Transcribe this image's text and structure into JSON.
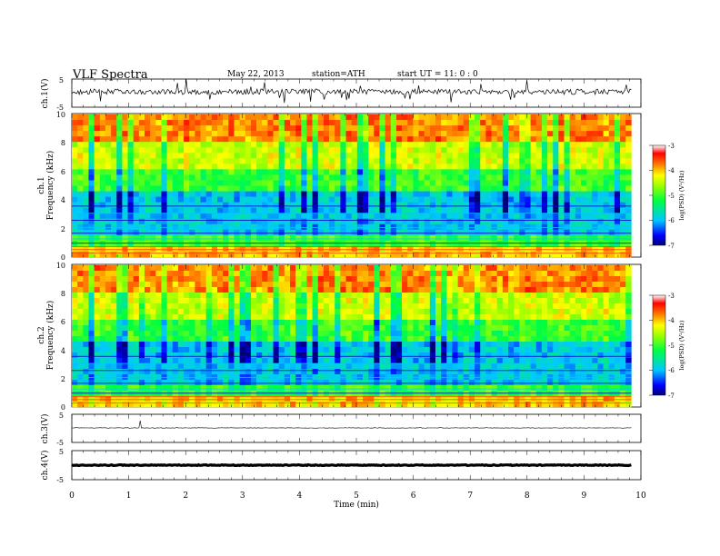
{
  "header": {
    "title": "VLF  Spectra",
    "date": "May 22, 2013",
    "station": "station=ATH",
    "start": "start  UT  =    11: 0  : 0"
  },
  "x_axis": {
    "label": "Time  (min)",
    "range": [
      0,
      10
    ],
    "ticks": [
      "0",
      "1",
      "2",
      "3",
      "4",
      "5",
      "6",
      "7",
      "8",
      "9",
      "10"
    ],
    "data_end": 9.83
  },
  "colorbar": {
    "label": "log(PSD) (V²/Hz)",
    "range": [
      -7,
      -3
    ],
    "ticks": [
      "-3",
      "-4",
      "-5",
      "-6",
      "-7"
    ]
  },
  "panels": {
    "ch1_wave": {
      "label": "ch.1(V)",
      "ticks": [
        "5",
        "-5"
      ],
      "range": [
        -5,
        5
      ]
    },
    "ch1_spec": {
      "label_channel": "ch.1",
      "label_axis": "Frequency  (kHz)",
      "ticks": [
        "10",
        "8",
        "6",
        "4",
        "2",
        "0"
      ],
      "range": [
        0,
        10
      ]
    },
    "ch2_spec": {
      "label_channel": "ch.2",
      "label_axis": "Frequency  (kHz)",
      "ticks": [
        "10",
        "8",
        "6",
        "4",
        "2",
        "0"
      ],
      "range": [
        0,
        10
      ]
    },
    "ch3_wave": {
      "label": "ch.3(V)",
      "ticks": [
        "5",
        "-5"
      ],
      "range": [
        -5,
        5
      ]
    },
    "ch4_wave": {
      "label": "ch.4(V)",
      "ticks": [
        "5",
        "-5"
      ],
      "range": [
        -5,
        5
      ]
    }
  },
  "chart_data": [
    {
      "type": "line",
      "ylabel": "ch.1(V)",
      "xlabel": "Time  (min)",
      "xlim": [
        0,
        10
      ],
      "ylim": [
        -5,
        5
      ],
      "mean_level": 0,
      "note_visible": "noisy waveform with spikes"
    },
    {
      "type": "heatmap",
      "ylabel": "Frequency  (kHz)",
      "channel": "ch.1",
      "xlim": [
        0,
        10
      ],
      "ylim": [
        0,
        10
      ],
      "zlim": [
        -7,
        -3
      ],
      "zlabel": "log(PSD) (V²/Hz)"
    },
    {
      "type": "heatmap",
      "ylabel": "Frequency  (kHz)",
      "channel": "ch.2",
      "xlim": [
        0,
        10
      ],
      "ylim": [
        0,
        10
      ],
      "zlim": [
        -7,
        -3
      ],
      "zlabel": "log(PSD) (V²/Hz)"
    },
    {
      "type": "line",
      "ylabel": "ch.3(V)",
      "xlim": [
        0,
        10
      ],
      "ylim": [
        -5,
        5
      ],
      "mean_level": 0
    },
    {
      "type": "line",
      "ylabel": "ch.4(V)",
      "xlim": [
        0,
        10
      ],
      "ylim": [
        -5,
        5
      ],
      "mean_level": 0
    }
  ]
}
